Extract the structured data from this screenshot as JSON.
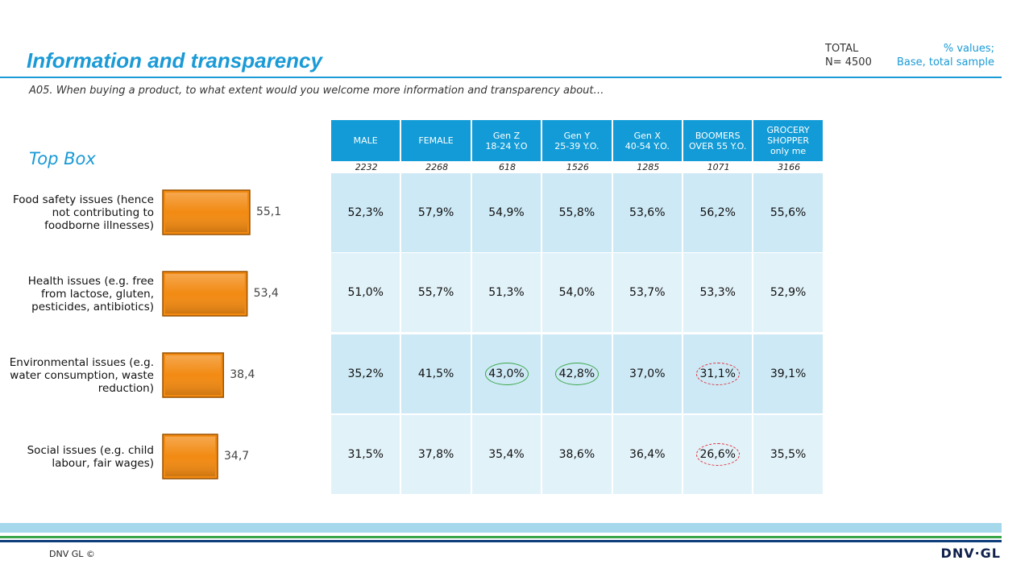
{
  "header": {
    "title": "Information and transparency",
    "subtitle": "A05. When buying a product, to what extent would you welcome more information and transparency about…",
    "total": [
      "TOTAL",
      "N= 4500"
    ],
    "note": [
      "% values;",
      "Base, total sample"
    ]
  },
  "chart_data": {
    "type": "bar",
    "title": "Top Box",
    "categories": [
      "Food safety issues (hence not contributing to foodborne illnesses)",
      "Health issues (e.g. free from lactose, gluten, pesticides, antibiotics)",
      "Environmental issues (e.g. water consumption, waste reduction)",
      "Social issues (e.g. child labour, fair wages)"
    ],
    "values": [
      55.1,
      53.4,
      38.4,
      34.7
    ],
    "value_labels": [
      "55,1",
      "53,4",
      "38,4",
      "34,7"
    ],
    "color": "#f28a12"
  },
  "table": {
    "columns": [
      [
        "MALE"
      ],
      [
        "FEMALE"
      ],
      [
        "Gen Z",
        "18-24 Y.O"
      ],
      [
        "Gen Y",
        "25-39 Y.O."
      ],
      [
        "Gen X",
        "40-54 Y.O."
      ],
      [
        "BOOMERS",
        "OVER 55 Y.O."
      ],
      [
        "GROCERY",
        "SHOPPER",
        "only me"
      ]
    ],
    "bases": [
      "2232",
      "2268",
      "618",
      "1526",
      "1285",
      "1071",
      "3166"
    ],
    "rows": [
      [
        "52,3%",
        "57,9%",
        "54,9%",
        "55,8%",
        "53,6%",
        "56,2%",
        "55,6%"
      ],
      [
        "51,0%",
        "55,7%",
        "51,3%",
        "54,0%",
        "53,7%",
        "53,3%",
        "52,9%"
      ],
      [
        "35,2%",
        "41,5%",
        "43,0%",
        "42,8%",
        "37,0%",
        "31,1%",
        "39,1%"
      ],
      [
        "31,5%",
        "37,8%",
        "35,4%",
        "38,6%",
        "36,4%",
        "26,6%",
        "35,5%"
      ]
    ]
  },
  "footer": {
    "copyright": "DNV GL ©",
    "logo": "DNV·GL"
  }
}
